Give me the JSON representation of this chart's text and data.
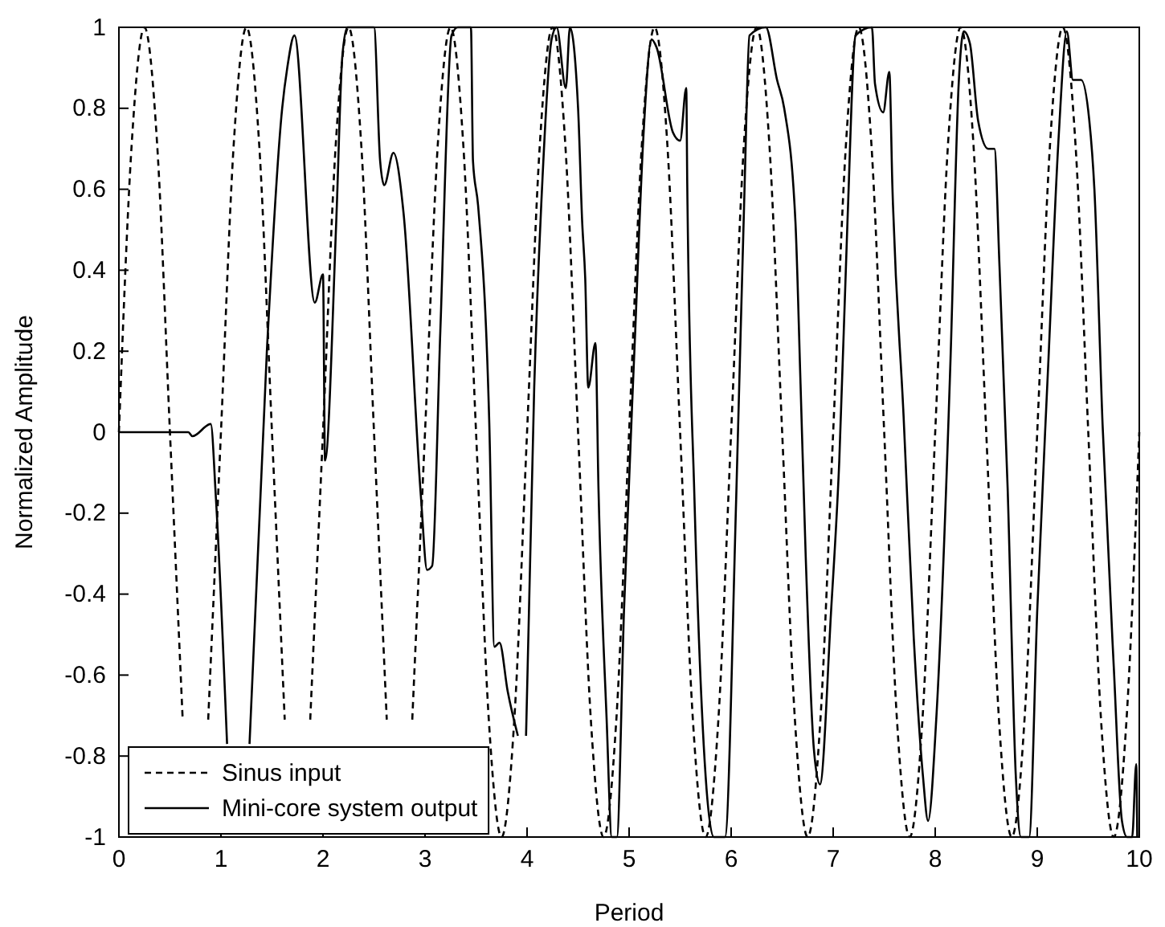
{
  "chart_data": {
    "type": "line",
    "xlabel": "Period",
    "ylabel": "Normalized Amplitude",
    "xlim": [
      0,
      10
    ],
    "ylim": [
      -1,
      1
    ],
    "xticks": [
      0,
      1,
      2,
      3,
      4,
      5,
      6,
      7,
      8,
      9,
      10
    ],
    "yticks": [
      -1,
      -0.8,
      -0.6,
      -0.4,
      -0.2,
      0,
      0.2,
      0.4,
      0.6,
      0.8,
      1
    ],
    "legend": "bottom left",
    "grid": false,
    "series": [
      {
        "name": "Sinus input",
        "color": "#000000",
        "line_style": "dashed",
        "x": [
          0,
          0.125,
          0.25,
          0.375,
          0.5,
          0.625,
          0.75,
          0.875,
          1,
          1.125,
          1.25,
          1.375,
          1.5,
          1.625,
          1.75,
          1.875,
          2,
          2.125,
          2.25,
          2.375,
          2.5,
          2.625,
          2.75,
          2.875,
          3,
          3.125,
          3.25,
          3.375,
          3.5,
          3.625,
          3.75,
          3.875,
          4,
          4.125,
          4.25,
          4.375,
          4.5,
          4.625,
          4.75,
          4.875,
          5,
          5.125,
          5.25,
          5.375,
          5.5,
          5.625,
          5.75,
          5.875,
          6,
          6.125,
          6.25,
          6.375,
          6.5,
          6.625,
          6.75,
          6.875,
          7,
          7.125,
          7.25,
          7.375,
          7.5,
          7.625,
          7.75,
          7.875,
          8,
          8.125,
          8.25,
          8.375,
          8.5,
          8.625,
          8.75,
          8.875,
          9,
          9.125,
          9.25,
          9.375,
          9.5,
          9.625,
          9.75,
          9.875,
          10
        ],
        "values": [
          0,
          0.71,
          1,
          0.71,
          0,
          -0.71,
          null,
          -0.71,
          0,
          0.71,
          1,
          0.71,
          0,
          -0.71,
          null,
          -0.71,
          0,
          0.71,
          1,
          0.71,
          0,
          -0.71,
          null,
          -0.71,
          0,
          0.71,
          1,
          0.71,
          0,
          -0.71,
          -1,
          -0.71,
          0,
          0.71,
          1,
          0.71,
          0,
          -0.71,
          -1,
          -0.71,
          0,
          0.71,
          1,
          0.71,
          0,
          -0.71,
          -1,
          -0.71,
          0,
          0.71,
          1,
          0.71,
          0,
          -0.71,
          -1,
          -0.71,
          0,
          0.71,
          1,
          0.71,
          0,
          -0.71,
          -1,
          -0.71,
          0,
          0.71,
          1,
          0.71,
          0,
          -0.71,
          -1,
          -0.71,
          0,
          0.71,
          1,
          0.71,
          0,
          -0.71,
          -1,
          -0.71,
          0
        ]
      },
      {
        "name": "Mini-core system output",
        "color": "#000000",
        "line_style": "solid",
        "x": [
          0,
          0.68,
          0.72,
          0.9,
          0.95,
          1.06,
          1.17,
          1.28,
          1.45,
          1.6,
          1.65,
          1.72,
          1.92,
          2.0,
          2.02,
          2.13,
          2.19,
          2.24,
          2.5,
          2.56,
          2.6,
          2.69,
          2.79,
          2.96,
          3.02,
          3.07,
          3.15,
          3.26,
          3.32,
          3.45,
          3.47,
          3.52,
          3.63,
          3.68,
          3.73,
          3.81,
          3.91,
          3.95,
          3.99,
          4.07,
          4.15,
          4.24,
          4.29,
          4.38,
          4.42,
          4.5,
          4.54,
          4.57,
          4.6,
          4.67,
          4.7,
          4.78,
          4.83,
          4.88,
          4.95,
          5.06,
          5.14,
          5.22,
          5.27,
          5.43,
          5.5,
          5.56,
          5.57,
          5.64,
          5.75,
          5.83,
          5.94,
          6.05,
          6.13,
          6.18,
          6.34,
          6.45,
          6.52,
          6.63,
          6.68,
          6.73,
          6.81,
          6.87,
          6.98,
          7.06,
          7.14,
          7.22,
          7.38,
          7.41,
          7.49,
          7.55,
          7.58,
          7.69,
          7.79,
          7.88,
          7.93,
          8.01,
          8.15,
          8.23,
          8.28,
          8.34,
          8.42,
          8.52,
          8.58,
          8.63,
          8.71,
          8.79,
          8.84,
          8.92,
          9.0,
          9.11,
          9.21,
          9.29,
          9.35,
          9.43,
          9.51,
          9.56,
          9.64,
          9.75,
          9.83,
          9.88,
          9.93,
          9.97,
          9.98
        ],
        "values": [
          0,
          0,
          -0.01,
          0.02,
          -0.16,
          -0.77,
          null,
          -0.77,
          0.2,
          0.8,
          0.9,
          0.98,
          0.32,
          0.39,
          -0.07,
          0.52,
          0.93,
          1,
          1,
          0.67,
          0.61,
          0.69,
          0.54,
          -0.16,
          -0.34,
          -0.33,
          0.25,
          0.98,
          1,
          1,
          0.67,
          0.56,
          0.02,
          -0.53,
          -0.52,
          -0.64,
          -0.75,
          null,
          -0.75,
          0.11,
          0.62,
          0.97,
          1,
          0.85,
          1,
          0.8,
          0.52,
          0.38,
          0.11,
          0.22,
          -0.14,
          -0.71,
          -1,
          -1,
          -0.44,
          0.25,
          0.73,
          0.97,
          0.95,
          0.74,
          0.72,
          0.85,
          0.61,
          -0.16,
          -0.85,
          -1,
          -1,
          -0.16,
          0.59,
          0.98,
          1,
          0.87,
          0.8,
          0.52,
          0.12,
          -0.3,
          -0.78,
          -0.87,
          -0.44,
          -0.07,
          0.52,
          0.98,
          1,
          0.86,
          0.79,
          0.89,
          0.61,
          0.04,
          -0.51,
          -0.85,
          -0.96,
          -0.71,
          0.18,
          0.86,
          0.99,
          0.96,
          0.77,
          0.7,
          0.7,
          0.41,
          -0.14,
          -0.85,
          -1,
          -1,
          -0.44,
          0.18,
          0.73,
          0.99,
          0.87,
          0.87,
          0.77,
          0.6,
          0.02,
          -0.58,
          -0.96,
          -1,
          -1,
          -0.82,
          -1
        ]
      }
    ]
  }
}
